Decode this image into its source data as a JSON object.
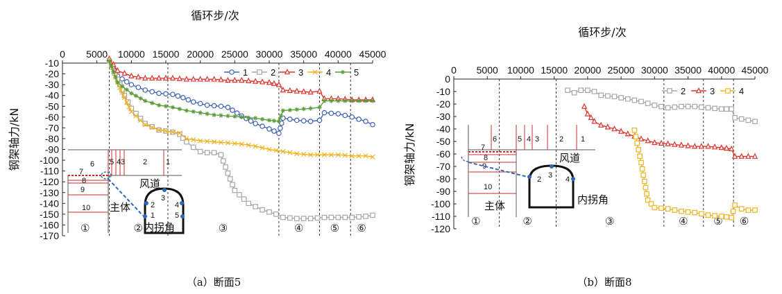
{
  "chart_data": [
    {
      "type": "line",
      "caption": "（a）断面5",
      "xlabel": "循环步/次",
      "ylabel": "钢架轴力/kN",
      "xlim": [
        0,
        45000
      ],
      "ylim": [
        -170,
        -10
      ],
      "x_ticks": [
        "0",
        "5000",
        "10000",
        "15000",
        "20000",
        "25000",
        "30000",
        "35000",
        "40000",
        "45000"
      ],
      "y_ticks": [
        "-10",
        "-20",
        "-30",
        "-40",
        "-50",
        "-60",
        "-70",
        "-80",
        "-90",
        "-100",
        "-110",
        "-120",
        "-130",
        "-140",
        "-150",
        "-160",
        "-170"
      ],
      "stage_lines": [
        6800,
        15300,
        31400,
        37300,
        41800
      ],
      "stage_labels": [
        {
          "label": "①",
          "x": 3300
        },
        {
          "label": "②",
          "x": 11000
        },
        {
          "label": "③",
          "x": 23300
        },
        {
          "label": "④",
          "x": 34300
        },
        {
          "label": "⑤",
          "x": 39500
        },
        {
          "label": "⑥",
          "x": 43400
        }
      ],
      "legend": {
        "position": "top-right"
      },
      "series": [
        {
          "name": "1",
          "color": "#3b63b5",
          "marker": "circle",
          "x": [
            6800,
            8000,
            10000,
            12000,
            14000,
            16000,
            17500,
            19000,
            21000,
            23000,
            24000,
            26000,
            28000,
            30000,
            31400,
            32000,
            34000,
            36000,
            37300,
            38000,
            40000,
            42000,
            44000,
            45000
          ],
          "y": [
            -8,
            -22,
            -30,
            -35,
            -38,
            -39,
            -42,
            -46,
            -49,
            -50,
            -51,
            -59,
            -66,
            -71,
            -75,
            -61,
            -63,
            -64,
            -63,
            -56,
            -57,
            -60,
            -64,
            -67
          ]
        },
        {
          "name": "2",
          "color": "#a6a6a6",
          "marker": "square",
          "x": [
            6800,
            8000,
            9000,
            10000,
            12000,
            14000,
            16000,
            17000,
            18000,
            19000,
            20000,
            21000,
            22000,
            23000,
            24000,
            25000,
            27000,
            29000,
            31000,
            32000,
            34000,
            36000,
            38000,
            40000,
            42000,
            44000,
            45000
          ],
          "y": [
            -8,
            -25,
            -40,
            -52,
            -66,
            -72,
            -74,
            -76,
            -83,
            -88,
            -92,
            -93,
            -93,
            -95,
            -112,
            -128,
            -140,
            -146,
            -150,
            -153,
            -154,
            -154,
            -153,
            -153,
            -153,
            -152,
            -151
          ]
        },
        {
          "name": "3",
          "color": "#e0332c",
          "marker": "triangle",
          "x": [
            6800,
            8000,
            10000,
            12000,
            14000,
            16000,
            18000,
            20000,
            22000,
            24000,
            26000,
            28000,
            30000,
            31400,
            32000,
            34000,
            36000,
            37300,
            38000,
            40000,
            42000,
            44000,
            45000
          ],
          "y": [
            -6,
            -17,
            -22,
            -24,
            -24,
            -24,
            -25,
            -25,
            -25,
            -26,
            -26,
            -27,
            -28,
            -30,
            -35,
            -36,
            -37,
            -36,
            -43,
            -43,
            -44,
            -44,
            -44
          ]
        },
        {
          "name": "4",
          "color": "#f0b221",
          "marker": "cross",
          "x": [
            6800,
            8000,
            9000,
            10000,
            12000,
            14000,
            16000,
            17000,
            18000,
            20000,
            22000,
            24000,
            26000,
            28000,
            30000,
            32000,
            34000,
            36000,
            38000,
            40000,
            42000,
            44000,
            45000
          ],
          "y": [
            -8,
            -28,
            -42,
            -55,
            -67,
            -72,
            -74,
            -75,
            -80,
            -82,
            -83,
            -84,
            -85,
            -87,
            -90,
            -92,
            -94,
            -95,
            -95,
            -95,
            -96,
            -96,
            -97
          ]
        },
        {
          "name": "5",
          "color": "#5a9e3b",
          "marker": "star",
          "x": [
            6800,
            8000,
            10000,
            12000,
            14000,
            16000,
            18000,
            20000,
            22000,
            24000,
            26000,
            28000,
            30000,
            31400,
            32000,
            34000,
            36000,
            37300,
            38000,
            40000,
            42000,
            44000,
            45000
          ],
          "y": [
            -8,
            -28,
            -38,
            -45,
            -49,
            -51,
            -54,
            -56,
            -58,
            -59,
            -60,
            -61,
            -63,
            -64,
            -54,
            -53,
            -52,
            -51,
            -45,
            -45,
            -45,
            -45,
            -45
          ]
        }
      ],
      "inset": {
        "bays": [
          "6",
          "5",
          "4",
          "3",
          "2",
          "1"
        ],
        "layers": [
          "7",
          "8",
          "9",
          "10"
        ],
        "labels": [
          "风道",
          "主体",
          "内拐角"
        ],
        "points": [
          "1",
          "2",
          "3",
          "4",
          "5"
        ]
      }
    },
    {
      "type": "line",
      "caption": "（b）断面8",
      "xlabel": "循环步/次",
      "ylabel": "钢架轴力/kN",
      "xlim": [
        0,
        45000
      ],
      "ylim": [
        -120,
        0
      ],
      "x_ticks": [
        "0",
        "5000",
        "10000",
        "15000",
        "20000",
        "25000",
        "30000",
        "35000",
        "40000",
        "45000"
      ],
      "y_ticks": [
        "0",
        "-10",
        "-20",
        "-30",
        "-40",
        "-50",
        "-60",
        "-70",
        "-80",
        "-90",
        "-100",
        "-110",
        "-120"
      ],
      "stage_lines": [
        6800,
        15300,
        31400,
        37300,
        41800
      ],
      "stage_labels": [
        {
          "label": "①",
          "x": 3300
        },
        {
          "label": "②",
          "x": 11000
        },
        {
          "label": "③",
          "x": 23300
        },
        {
          "label": "④",
          "x": 34300
        },
        {
          "label": "⑤",
          "x": 39500
        },
        {
          "label": "⑥",
          "x": 43400
        }
      ],
      "legend": {
        "position": "top-right"
      },
      "series": [
        {
          "name": "2",
          "color": "#a6a6a6",
          "marker": "square",
          "x": [
            17000,
            18000,
            19000,
            20000,
            21000,
            22000,
            24000,
            26000,
            28000,
            30000,
            32000,
            34000,
            36000,
            38000,
            40000,
            41500,
            42000,
            44000,
            45000
          ],
          "y": [
            -9,
            -11,
            -9,
            -9,
            -10,
            -13,
            -14,
            -16,
            -18,
            -21,
            -23,
            -22,
            -22,
            -23,
            -24,
            -24,
            -31,
            -33,
            -34
          ]
        },
        {
          "name": "3",
          "color": "#e0332c",
          "marker": "triangle",
          "x": [
            19500,
            20000,
            21000,
            22000,
            24000,
            26000,
            28000,
            30000,
            32000,
            34000,
            36000,
            38000,
            40000,
            41500,
            42000,
            44000,
            45000
          ],
          "y": [
            -22,
            -28,
            -34,
            -37,
            -40,
            -44,
            -48,
            -51,
            -52,
            -53,
            -54,
            -54,
            -55,
            -56,
            -62,
            -62,
            -62
          ]
        },
        {
          "name": "4",
          "color": "#f0b221",
          "marker": "square",
          "x": [
            27000,
            28000,
            29000,
            29500,
            30000,
            32000,
            34000,
            36000,
            38000,
            40000,
            41500,
            42000,
            43000,
            44000,
            45000
          ],
          "y": [
            -41,
            -67,
            -97,
            -100,
            -103,
            -104,
            -106,
            -107,
            -109,
            -110,
            -111,
            -101,
            -104,
            -105,
            -105
          ]
        }
      ],
      "inset": {
        "bays": [
          "6",
          "5",
          "4",
          "3",
          "2",
          "1"
        ],
        "layers": [
          "7",
          "8",
          "9",
          "10"
        ],
        "labels": [
          "风道",
          "主体",
          "内拐角"
        ],
        "points": [
          "2",
          "3",
          "4"
        ]
      }
    }
  ]
}
